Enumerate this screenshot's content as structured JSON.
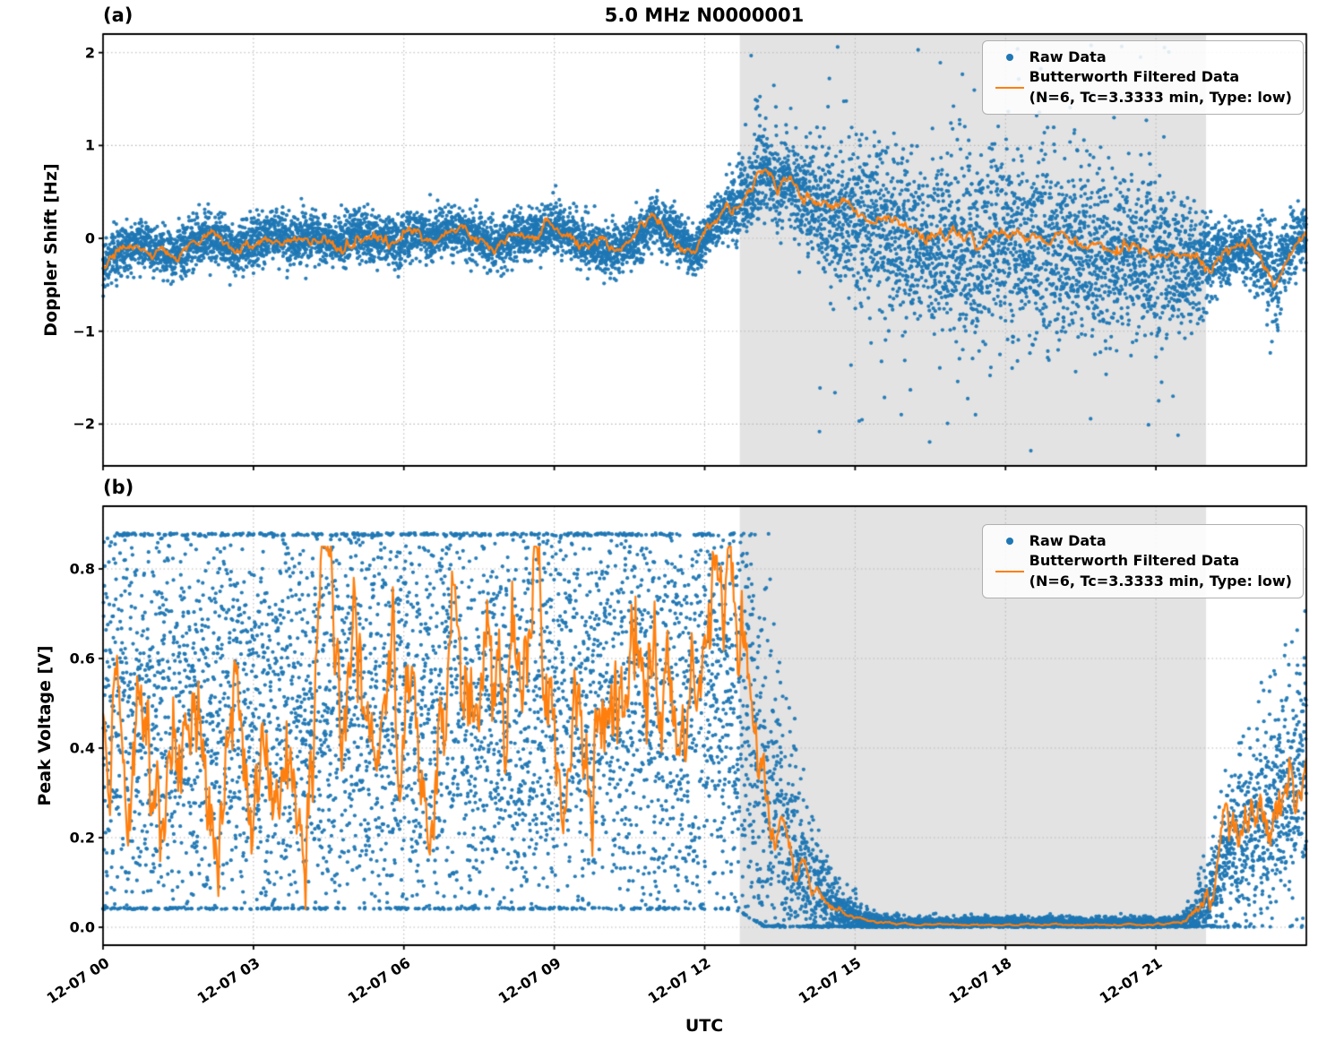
{
  "title": "5.0 MHz N0000001",
  "xlabel": "UTC",
  "legend": {
    "raw_label": "Raw Data",
    "filtered_label": "Butterworth Filtered Data",
    "filtered_params": "(N=6, Tc=3.3333 min, Type: low)"
  },
  "colors": {
    "raw": "#1f77b4",
    "filtered": "#ff7f0e",
    "shade": "#e3e3e3",
    "grid": "#b8b8b8",
    "spine": "#000000"
  },
  "x_axis": {
    "lim_hours": [
      0,
      24
    ],
    "tick_hours": [
      0,
      3,
      6,
      9,
      12,
      15,
      18,
      21
    ],
    "tick_labels": [
      "12-07 00",
      "12-07 03",
      "12-07 06",
      "12-07 09",
      "12-07 12",
      "12-07 15",
      "12-07 18",
      "12-07 21"
    ]
  },
  "shade_region_hours": [
    12.7,
    22.0
  ],
  "chart_data": [
    {
      "type": "scatter+line",
      "tag": "(a)",
      "title": "5.0 MHz N0000001",
      "ylabel": "Doppler Shift [Hz]",
      "xlabel": "UTC",
      "xlim_hours": [
        0,
        24
      ],
      "ylim": [
        -2.45,
        2.2
      ],
      "ytick_values": [
        2,
        1,
        0,
        -1,
        -2
      ],
      "ytick_labels": [
        "2",
        "1",
        "0",
        "−1",
        "−2"
      ],
      "grid": true,
      "legend_position": "upper right",
      "raw": {
        "name": "Raw Data",
        "seed": 7,
        "n_points": 9000,
        "center_follows_filtered": true,
        "spread_t": [
          0,
          12.2,
          12.6,
          13.0,
          13.5,
          14.0,
          14.5,
          15,
          16,
          17,
          18,
          19,
          20,
          21,
          21.6,
          22.0,
          22.6,
          23.0,
          23.3,
          23.6,
          24
        ],
        "spread_std": [
          0.13,
          0.13,
          0.2,
          0.25,
          0.22,
          0.3,
          0.36,
          0.42,
          0.46,
          0.5,
          0.5,
          0.48,
          0.46,
          0.42,
          0.36,
          0.22,
          0.15,
          0.18,
          0.3,
          0.16,
          0.18
        ],
        "offset_t": [
          0,
          13.6,
          14.0,
          21.4,
          21.8,
          24
        ],
        "offset_v": [
          0,
          0,
          -0.1,
          -0.1,
          0,
          0
        ],
        "clamp_lo": -2.4,
        "clamp_hi": 2.08,
        "outlier_burst": {
          "range": [
            12.75,
            13.45
          ],
          "prob": 0.05,
          "base": 1.1,
          "extra": 0.95
        },
        "outlier_night": {
          "range": [
            14.2,
            21.6
          ],
          "prob": 0.016,
          "base": 1.0,
          "extra": 1.3,
          "neg_frac": 0.6
        }
      },
      "filtered": {
        "name": "Butterworth Filtered Data",
        "params": "(N=6, Tc=3.3333 min, Type: low)",
        "seed": 13,
        "dt_hours": 0.02,
        "noise_ar": 0.88,
        "noise_amp_t": [
          0,
          24
        ],
        "noise_amp_v": [
          0.05,
          0.05
        ],
        "clamp_lo": -2.3,
        "clamp_hi": 2.0,
        "control_t": [
          0,
          0.3,
          0.7,
          1.0,
          1.4,
          1.8,
          2.2,
          2.6,
          3.0,
          3.4,
          3.8,
          4.2,
          4.6,
          5.0,
          5.4,
          5.8,
          6.2,
          6.6,
          7.0,
          7.4,
          7.8,
          8.2,
          8.6,
          9.0,
          9.4,
          9.8,
          10.2,
          10.6,
          11.0,
          11.4,
          11.8,
          12.1,
          12.4,
          12.7,
          13.0,
          13.2,
          13.45,
          13.7,
          13.9,
          14.2,
          14.6,
          15.0,
          15.5,
          16.0,
          16.5,
          17.0,
          17.5,
          18.0,
          18.5,
          19.0,
          19.5,
          20.0,
          20.5,
          21.0,
          21.5,
          22.0,
          22.4,
          22.8,
          23.1,
          23.35,
          23.6,
          23.8,
          24
        ],
        "control_v": [
          -0.3,
          -0.15,
          -0.05,
          -0.12,
          -0.2,
          -0.05,
          0.02,
          -0.12,
          -0.05,
          0.05,
          -0.02,
          0.03,
          -0.05,
          0.04,
          0.0,
          -0.04,
          0.05,
          0.02,
          0.1,
          0.02,
          -0.08,
          0.0,
          0.05,
          0.12,
          0.0,
          -0.1,
          -0.15,
          -0.05,
          0.2,
          0.05,
          -0.18,
          0.1,
          0.3,
          0.35,
          0.55,
          0.8,
          0.55,
          0.65,
          0.5,
          0.42,
          0.38,
          0.3,
          0.2,
          0.12,
          0.02,
          0.06,
          -0.04,
          0.1,
          0.0,
          0.05,
          -0.05,
          -0.1,
          -0.05,
          -0.15,
          -0.2,
          -0.25,
          -0.15,
          -0.1,
          -0.18,
          -0.5,
          -0.2,
          -0.05,
          0.08
        ]
      }
    },
    {
      "type": "scatter+line",
      "tag": "(b)",
      "ylabel": "Peak Voltage [V]",
      "xlabel": "UTC",
      "xlim_hours": [
        0,
        24
      ],
      "ylim": [
        -0.04,
        0.94
      ],
      "ytick_values": [
        0.8,
        0.6,
        0.4,
        0.2,
        0.0
      ],
      "ytick_labels": [
        "0.8",
        "0.6",
        "0.4",
        "0.2",
        "0.0"
      ],
      "grid": true,
      "legend_position": "upper right",
      "raw": {
        "name": "Raw Data",
        "seed": 21,
        "n_points": 9000,
        "center_follows_filtered": false,
        "center_t": [
          0,
          12.6,
          12.9,
          13.2,
          13.5,
          13.9,
          14.3,
          14.8,
          15.3,
          16,
          21.4,
          21.7,
          22.0,
          22.4,
          22.8,
          23.2,
          23.6,
          24
        ],
        "center_v": [
          0.46,
          0.5,
          0.44,
          0.3,
          0.2,
          0.12,
          0.06,
          0.025,
          0.012,
          0.009,
          0.009,
          0.02,
          0.06,
          0.14,
          0.22,
          0.26,
          0.3,
          0.38
        ],
        "spread_t": [
          0,
          12.6,
          12.9,
          13.2,
          13.5,
          13.9,
          14.3,
          14.8,
          15.3,
          16,
          21.4,
          21.7,
          22.0,
          22.4,
          22.8,
          23.2,
          23.6,
          24
        ],
        "spread_std": [
          0.27,
          0.27,
          0.26,
          0.22,
          0.17,
          0.12,
          0.06,
          0.025,
          0.012,
          0.007,
          0.007,
          0.018,
          0.05,
          0.09,
          0.11,
          0.12,
          0.13,
          0.18
        ],
        "clamp_lo_t": [
          0,
          12.6,
          13.2,
          24
        ],
        "clamp_lo_v": [
          0.04,
          0.04,
          0.0,
          0.0
        ],
        "clamp_hi": 0.88
      },
      "filtered": {
        "name": "Butterworth Filtered Data",
        "params": "(N=6, Tc=3.3333 min, Type: low)",
        "seed": 29,
        "dt_hours": 0.02,
        "noise_ar": 0.88,
        "noise_amp_t": [
          0,
          12.5,
          12.9,
          13.3,
          13.8,
          14.3,
          15,
          16,
          21.4,
          21.8,
          22.3,
          23,
          24
        ],
        "noise_amp_v": [
          0.12,
          0.12,
          0.07,
          0.045,
          0.02,
          0.01,
          0.003,
          0.0015,
          0.0015,
          0.012,
          0.04,
          0.05,
          0.05
        ],
        "clamp_lo": 0.004,
        "clamp_hi": 0.85,
        "control_t": [
          0,
          0.25,
          0.5,
          0.8,
          1.1,
          1.4,
          1.7,
          2.0,
          2.3,
          2.6,
          2.9,
          3.2,
          3.5,
          3.8,
          4.1,
          4.35,
          4.6,
          5.0,
          5.4,
          5.8,
          6.2,
          6.6,
          7.0,
          7.4,
          7.8,
          8.2,
          8.6,
          9.0,
          9.4,
          9.8,
          10.2,
          10.5,
          10.8,
          11.2,
          11.6,
          12.0,
          12.4,
          12.7,
          12.9,
          13.1,
          13.35,
          13.6,
          13.9,
          14.2,
          14.6,
          15.0,
          15.5,
          16.0,
          17.0,
          18.0,
          19.0,
          20.0,
          21.0,
          21.5,
          21.8,
          22.1,
          22.4,
          22.7,
          23.0,
          23.3,
          23.6,
          23.8,
          24
        ],
        "control_v": [
          0.5,
          0.65,
          0.4,
          0.55,
          0.35,
          0.5,
          0.3,
          0.42,
          0.25,
          0.35,
          0.22,
          0.38,
          0.28,
          0.2,
          0.3,
          0.72,
          0.5,
          0.58,
          0.48,
          0.56,
          0.45,
          0.52,
          0.6,
          0.5,
          0.62,
          0.52,
          0.58,
          0.5,
          0.55,
          0.48,
          0.6,
          0.78,
          0.55,
          0.68,
          0.52,
          0.62,
          0.75,
          0.78,
          0.62,
          0.45,
          0.3,
          0.2,
          0.12,
          0.08,
          0.04,
          0.018,
          0.01,
          0.007,
          0.006,
          0.006,
          0.006,
          0.006,
          0.007,
          0.012,
          0.03,
          0.09,
          0.16,
          0.22,
          0.28,
          0.24,
          0.3,
          0.27,
          0.38
        ]
      }
    }
  ]
}
